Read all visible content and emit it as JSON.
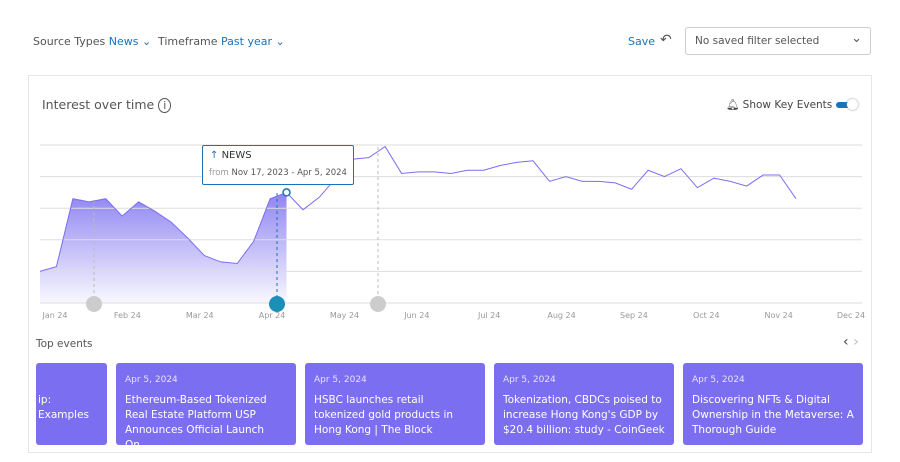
{
  "filters": {
    "source_label": "Source Types",
    "source_value": "News",
    "timeframe_label": "Timeframe",
    "timeframe_value": "Past year",
    "save": "Save",
    "saved_filter": "No saved filter selected"
  },
  "chart_data": {
    "type": "area",
    "title": "Interest over time",
    "toggle_label": "Show Key Events",
    "tooltip": {
      "title": "NEWS",
      "from": "from",
      "range": "Nov 17, 2023 - Apr 5, 2024"
    },
    "values": [
      20,
      23,
      66,
      64,
      66,
      55,
      64,
      58,
      51,
      41,
      30,
      26,
      25,
      39,
      66,
      70,
      59,
      67,
      79,
      91,
      92,
      99,
      82,
      83,
      83,
      82,
      84,
      84,
      87,
      89,
      90,
      77,
      80,
      77,
      77,
      76,
      72,
      84,
      80,
      85,
      73,
      79,
      77,
      74,
      81,
      81,
      66
    ],
    "color": "#7b6ef0",
    "ylim": [
      0,
      100
    ],
    "gridlines": [
      20,
      40,
      60,
      80,
      100
    ],
    "month_labels": [
      "Jan 24",
      "Feb 24",
      "Mar 24",
      "Apr 24",
      "May 24",
      "Jun 24",
      "Jul 24",
      "Aug 24",
      "Sep 24",
      "Oct 24",
      "Nov 24",
      "Dec 24"
    ]
  },
  "events": {
    "title": "Top events",
    "partial": [
      "ip:",
      "Examples"
    ],
    "cards": [
      {
        "date": "Apr 5, 2024",
        "title": "Ethereum-Based Tokenized Real Estate Platform USP Announces Official Launch On..."
      },
      {
        "date": "Apr 5, 2024",
        "title": "HSBC launches retail tokenized gold products in Hong Kong | The Block"
      },
      {
        "date": "Apr 5, 2024",
        "title": "Tokenization, CBDCs poised to increase Hong Kong's GDP by $20.4 billion: study - CoinGeek"
      },
      {
        "date": "Apr 5, 2024",
        "title": "Discovering NFTs & Digital Ownership in the Metaverse: A Thorough Guide"
      }
    ]
  }
}
